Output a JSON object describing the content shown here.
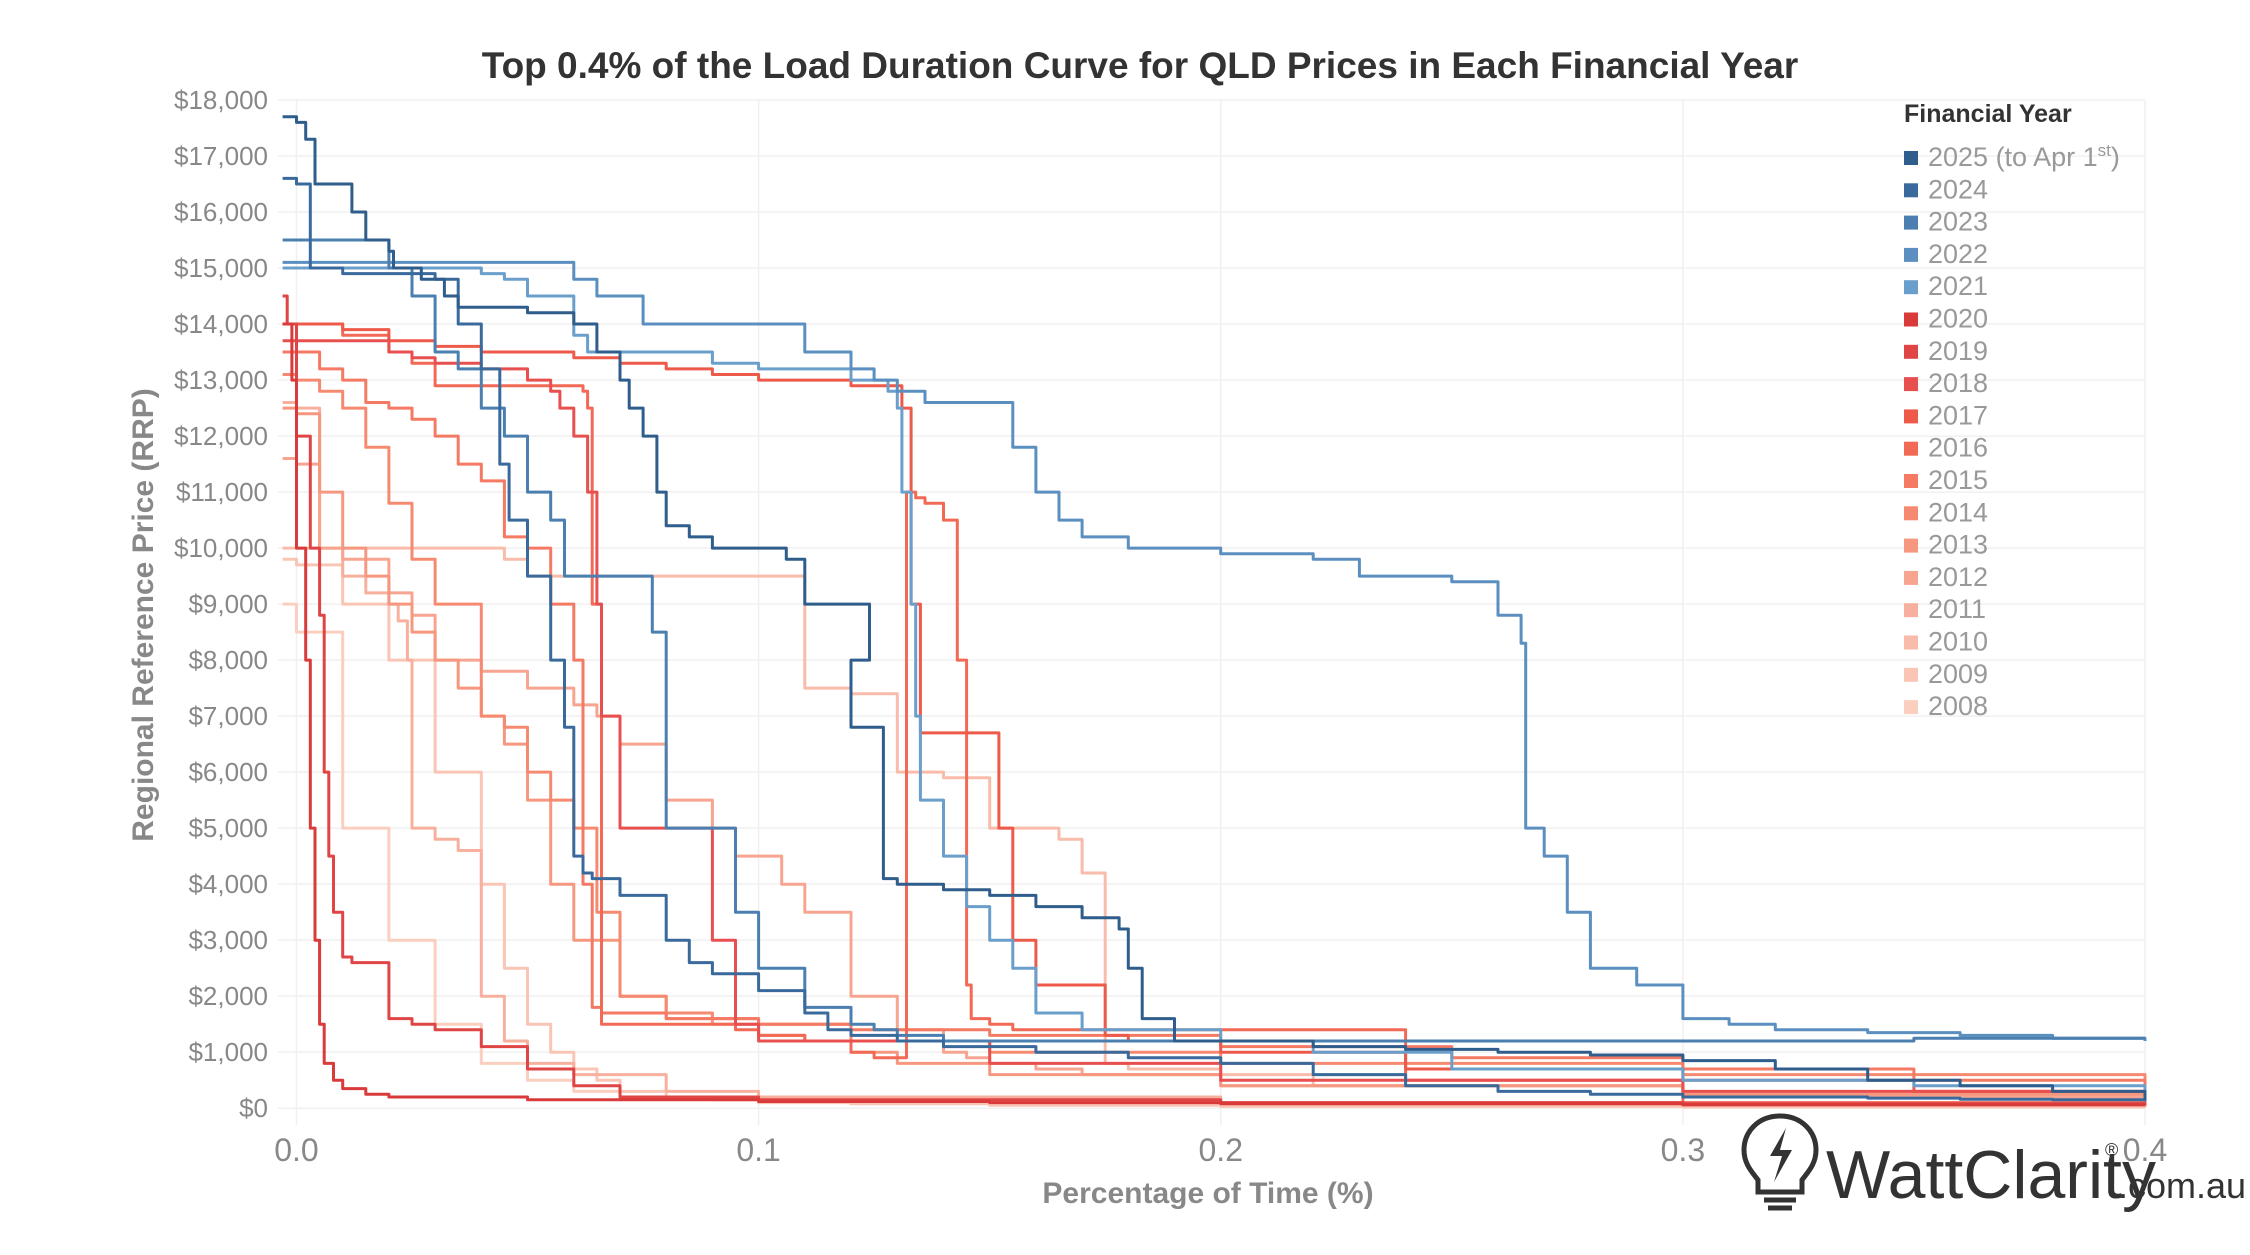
{
  "chart_data": {
    "type": "line",
    "title": "Top 0.4% of the Load Duration Curve for QLD Prices in Each Financial Year",
    "xlabel": "Percentage of Time (%)",
    "ylabel": "Regional Reference Price (RRP)",
    "xlim": [
      -0.004,
      0.4
    ],
    "ylim": [
      -300,
      18000
    ],
    "x_ticks": [
      0.0,
      0.1,
      0.2,
      0.3,
      0.4
    ],
    "x_tick_labels": [
      "0.0",
      "0.1",
      "0.2",
      "0.3",
      "0.4"
    ],
    "y_ticks": [
      0,
      1000,
      2000,
      3000,
      4000,
      5000,
      6000,
      7000,
      8000,
      9000,
      10000,
      11000,
      12000,
      13000,
      14000,
      15000,
      16000,
      17000,
      18000
    ],
    "y_tick_labels": [
      "$0",
      "$1,000",
      "$2,000",
      "$3,000",
      "$4,000",
      "$5,000",
      "$6,000",
      "$7,000",
      "$8,000",
      "$9,000",
      "$10,000",
      "$11,000",
      "$12,000",
      "$13,000",
      "$14,000",
      "$15,000",
      "$16,000",
      "$17,000",
      "$18,000"
    ],
    "grid": true,
    "legend": {
      "title": "Financial Year",
      "position": "top-right"
    },
    "series": [
      {
        "name": "2025 (to Apr 1",
        "superscript": "st",
        "suffix": ")",
        "color": "#2f5d8c",
        "x": [
          -0.003,
          0.0,
          0.002,
          0.004,
          0.009,
          0.012,
          0.015,
          0.02,
          0.021,
          0.027,
          0.032,
          0.035,
          0.04,
          0.045,
          0.05,
          0.06,
          0.065,
          0.07,
          0.072,
          0.075,
          0.078,
          0.08,
          0.085,
          0.09,
          0.1,
          0.106,
          0.11,
          0.12,
          0.124,
          0.12,
          0.127,
          0.13,
          0.133,
          0.14,
          0.15,
          0.16,
          0.17,
          0.178,
          0.18,
          0.183,
          0.19,
          0.2,
          0.22,
          0.24,
          0.26,
          0.28,
          0.3,
          0.32,
          0.34,
          0.36,
          0.38,
          0.4
        ],
        "y": [
          17700,
          17600,
          17300,
          16500,
          16500,
          16000,
          15500,
          15300,
          15000,
          14800,
          14500,
          14300,
          14300,
          14300,
          14200,
          14000,
          13500,
          13000,
          12500,
          12000,
          11000,
          10400,
          10200,
          10000,
          10000,
          9800,
          9000,
          9000,
          8000,
          6800,
          4100,
          4000,
          4000,
          3900,
          3800,
          3600,
          3400,
          3200,
          2500,
          1600,
          1200,
          1200,
          1100,
          1050,
          1000,
          950,
          850,
          700,
          500,
          400,
          300,
          150
        ]
      },
      {
        "name": "2024",
        "color": "#3a6a9c",
        "x": [
          -0.003,
          0.0,
          0.003,
          0.01,
          0.02,
          0.03,
          0.035,
          0.04,
          0.044,
          0.046,
          0.05,
          0.055,
          0.058,
          0.06,
          0.062,
          0.064,
          0.07,
          0.08,
          0.085,
          0.09,
          0.1,
          0.11,
          0.115,
          0.12,
          0.13,
          0.14,
          0.16,
          0.18,
          0.2,
          0.22,
          0.24,
          0.26,
          0.28,
          0.3,
          0.32,
          0.34,
          0.36,
          0.38,
          0.4
        ],
        "y": [
          16600,
          16500,
          15000,
          14900,
          14900,
          14800,
          14000,
          13200,
          11500,
          10500,
          9500,
          8000,
          6800,
          4500,
          4200,
          4100,
          3800,
          3000,
          2600,
          2400,
          2100,
          1700,
          1400,
          1300,
          1200,
          1100,
          1000,
          900,
          800,
          600,
          400,
          300,
          250,
          200,
          200,
          180,
          160,
          150,
          120
        ]
      },
      {
        "name": "2023",
        "color": "#4a7fb0",
        "x": [
          -0.003,
          0.0,
          0.015,
          0.02,
          0.025,
          0.03,
          0.035,
          0.04,
          0.045,
          0.05,
          0.055,
          0.058,
          0.06,
          0.062,
          0.065,
          0.07,
          0.076,
          0.077,
          0.08,
          0.09,
          0.095,
          0.1,
          0.11,
          0.12,
          0.125,
          0.13,
          0.14,
          0.15,
          0.17,
          0.2,
          0.24,
          0.3,
          0.35,
          0.4
        ],
        "y": [
          15500,
          15500,
          15500,
          15000,
          14500,
          13500,
          13200,
          12500,
          12000,
          11000,
          10500,
          9500,
          9500,
          9500,
          9500,
          9500,
          9500,
          8500,
          5000,
          5000,
          3500,
          2500,
          1800,
          1500,
          1400,
          1300,
          1200,
          1200,
          1200,
          1200,
          1200,
          1200,
          1250,
          1250
        ]
      },
      {
        "name": "2022",
        "color": "#5b8fc0",
        "x": [
          -0.003,
          0.0,
          0.02,
          0.05,
          0.06,
          0.065,
          0.075,
          0.1,
          0.11,
          0.12,
          0.125,
          0.13,
          0.136,
          0.14,
          0.15,
          0.155,
          0.16,
          0.165,
          0.17,
          0.18,
          0.2,
          0.22,
          0.23,
          0.24,
          0.25,
          0.26,
          0.265,
          0.266,
          0.267,
          0.27,
          0.275,
          0.28,
          0.29,
          0.3,
          0.31,
          0.32,
          0.34,
          0.36,
          0.38,
          0.4
        ],
        "y": [
          15100,
          15100,
          15100,
          15100,
          14800,
          14500,
          14000,
          14000,
          13500,
          13200,
          13000,
          12800,
          12600,
          12600,
          12600,
          11800,
          11000,
          10500,
          10200,
          10000,
          9900,
          9800,
          9500,
          9500,
          9400,
          8800,
          8300,
          5000,
          5000,
          4500,
          3500,
          2500,
          2200,
          1600,
          1500,
          1400,
          1350,
          1300,
          1250,
          1200
        ]
      },
      {
        "name": "2021",
        "color": "#6a9fcc",
        "x": [
          -0.003,
          0.0,
          0.02,
          0.04,
          0.045,
          0.05,
          0.06,
          0.063,
          0.07,
          0.09,
          0.1,
          0.12,
          0.128,
          0.13,
          0.131,
          0.133,
          0.134,
          0.135,
          0.14,
          0.145,
          0.15,
          0.155,
          0.16,
          0.17,
          0.2,
          0.22,
          0.25,
          0.3,
          0.35,
          0.4
        ],
        "y": [
          15000,
          15000,
          15000,
          14900,
          14800,
          14500,
          13800,
          13500,
          13500,
          13300,
          13200,
          13000,
          12800,
          12500,
          11000,
          9000,
          7000,
          5500,
          4500,
          3600,
          3000,
          2500,
          1700,
          1400,
          1200,
          1000,
          700,
          500,
          400,
          300
        ]
      },
      {
        "name": "2020",
        "color": "#d93a3a",
        "x": [
          -0.003,
          -0.001,
          0.0,
          0.002,
          0.003,
          0.004,
          0.005,
          0.006,
          0.008,
          0.01,
          0.015,
          0.02,
          0.05,
          0.1,
          0.15,
          0.2,
          0.3,
          0.4
        ],
        "y": [
          14000,
          13000,
          10000,
          8000,
          5000,
          3000,
          1500,
          800,
          500,
          350,
          250,
          200,
          150,
          120,
          100,
          80,
          60,
          50
        ]
      },
      {
        "name": "2019",
        "color": "#e04545",
        "x": [
          -0.003,
          -0.002,
          0.0,
          0.003,
          0.005,
          0.006,
          0.007,
          0.008,
          0.01,
          0.012,
          0.015,
          0.02,
          0.025,
          0.03,
          0.04,
          0.05,
          0.06,
          0.07,
          0.1,
          0.2,
          0.3,
          0.4
        ],
        "y": [
          14500,
          14000,
          12000,
          10000,
          8800,
          6000,
          4500,
          3500,
          2700,
          2600,
          2600,
          1600,
          1500,
          1400,
          1100,
          700,
          400,
          200,
          150,
          100,
          80,
          60
        ]
      },
      {
        "name": "2018",
        "color": "#e85050",
        "x": [
          -0.003,
          0.0,
          0.01,
          0.02,
          0.025,
          0.03,
          0.035,
          0.04,
          0.05,
          0.055,
          0.057,
          0.06,
          0.063,
          0.065,
          0.066,
          0.07,
          0.09,
          0.095,
          0.1,
          0.15,
          0.2,
          0.3,
          0.4
        ],
        "y": [
          13700,
          13700,
          13700,
          13500,
          13400,
          13300,
          13300,
          13200,
          13000,
          12800,
          12500,
          12000,
          11000,
          9000,
          7000,
          5000,
          3000,
          1500,
          1200,
          800,
          500,
          300,
          200
        ]
      },
      {
        "name": "2017",
        "color": "#ee5a4a",
        "x": [
          -0.003,
          0.0,
          0.01,
          0.02,
          0.03,
          0.04,
          0.05,
          0.06,
          0.07,
          0.08,
          0.09,
          0.1,
          0.11,
          0.12,
          0.128,
          0.13,
          0.131,
          0.133,
          0.135,
          0.15,
          0.152,
          0.155,
          0.16,
          0.17,
          0.175,
          0.18,
          0.2,
          0.24,
          0.3,
          0.35,
          0.4
        ],
        "y": [
          14000,
          14000,
          13900,
          13700,
          13600,
          13500,
          13500,
          13400,
          13300,
          13200,
          13100,
          13000,
          13000,
          12900,
          12900,
          12900,
          12500,
          9000,
          6700,
          6700,
          5000,
          3000,
          2200,
          2200,
          1300,
          1200,
          1000,
          700,
          500,
          300,
          200
        ]
      },
      {
        "name": "2016",
        "color": "#f26a55",
        "x": [
          -0.003,
          0.0,
          0.01,
          0.02,
          0.025,
          0.03,
          0.04,
          0.06,
          0.062,
          0.063,
          0.064,
          0.066,
          0.07,
          0.08,
          0.09,
          0.095,
          0.1,
          0.11,
          0.12,
          0.125,
          0.127,
          0.13,
          0.132,
          0.134,
          0.136,
          0.14,
          0.143,
          0.145,
          0.146,
          0.15,
          0.155,
          0.16,
          0.2,
          0.22,
          0.24,
          0.3,
          0.4
        ],
        "y": [
          14000,
          14000,
          13800,
          13500,
          13300,
          12900,
          12900,
          12900,
          12800,
          12500,
          9000,
          1500,
          1500,
          1500,
          1500,
          1400,
          1300,
          1200,
          1000,
          900,
          900,
          900,
          11000,
          10900,
          10800,
          10500,
          8000,
          2200,
          1600,
          1500,
          1400,
          1400,
          1400,
          1400,
          500,
          100,
          50
        ]
      },
      {
        "name": "2015",
        "color": "#f47a63",
        "x": [
          -0.003,
          0.0,
          0.005,
          0.01,
          0.015,
          0.02,
          0.025,
          0.03,
          0.035,
          0.04,
          0.045,
          0.05,
          0.055,
          0.06,
          0.062,
          0.064,
          0.066,
          0.07,
          0.08,
          0.1,
          0.12,
          0.15,
          0.2,
          0.25,
          0.3,
          0.35,
          0.4
        ],
        "y": [
          13500,
          13500,
          13200,
          13000,
          12600,
          12500,
          12300,
          12000,
          11500,
          11200,
          10200,
          10000,
          9000,
          8000,
          4000,
          1800,
          1700,
          1700,
          1600,
          1500,
          1400,
          1300,
          1100,
          900,
          700,
          500,
          400
        ]
      },
      {
        "name": "2014",
        "color": "#f58a70",
        "x": [
          -0.003,
          0.0,
          0.005,
          0.01,
          0.015,
          0.02,
          0.025,
          0.03,
          0.04,
          0.045,
          0.05,
          0.055,
          0.06,
          0.065,
          0.07,
          0.08,
          0.09,
          0.1,
          0.12,
          0.15,
          0.2,
          0.3,
          0.4
        ],
        "y": [
          13100,
          13000,
          12800,
          12500,
          11800,
          10800,
          9800,
          9000,
          7000,
          6800,
          6000,
          5500,
          5000,
          3500,
          2000,
          1700,
          1600,
          1500,
          1200,
          1000,
          800,
          600,
          500
        ]
      },
      {
        "name": "2013",
        "color": "#f69880",
        "x": [
          -0.003,
          0.0,
          0.005,
          0.01,
          0.015,
          0.02,
          0.025,
          0.03,
          0.035,
          0.04,
          0.045,
          0.05,
          0.055,
          0.06,
          0.07,
          0.08,
          0.09,
          0.1,
          0.11,
          0.12,
          0.13,
          0.15,
          0.2,
          0.3,
          0.4
        ],
        "y": [
          12500,
          12400,
          11000,
          10000,
          9500,
          9000,
          8500,
          8000,
          7500,
          7000,
          6500,
          5500,
          4000,
          3000,
          2000,
          1600,
          1500,
          1300,
          1200,
          1000,
          800,
          600,
          400,
          250,
          200
        ]
      },
      {
        "name": "2012",
        "color": "#f7a590",
        "x": [
          -0.003,
          0.0,
          0.005,
          0.01,
          0.02,
          0.025,
          0.03,
          0.04,
          0.05,
          0.06,
          0.065,
          0.07,
          0.08,
          0.09,
          0.095,
          0.1,
          0.105,
          0.11,
          0.12,
          0.13,
          0.14,
          0.145,
          0.15,
          0.16,
          0.17,
          0.2,
          0.3,
          0.4
        ],
        "y": [
          11600,
          11500,
          10000,
          9800,
          9200,
          8800,
          8000,
          7800,
          7500,
          7200,
          7000,
          6500,
          5500,
          5000,
          4500,
          4500,
          4000,
          3500,
          2000,
          1400,
          1000,
          900,
          800,
          700,
          600,
          400,
          200,
          100
        ]
      },
      {
        "name": "2011",
        "color": "#f8b09e",
        "x": [
          -0.003,
          0.0,
          0.005,
          0.01,
          0.015,
          0.02,
          0.022,
          0.024,
          0.025,
          0.03,
          0.035,
          0.04,
          0.045,
          0.05,
          0.06,
          0.08,
          0.1,
          0.2,
          0.3,
          0.4
        ],
        "y": [
          12600,
          12500,
          10000,
          9500,
          9200,
          9000,
          8700,
          8000,
          5000,
          4800,
          4600,
          2000,
          1200,
          800,
          600,
          300,
          200,
          100,
          50,
          20
        ]
      },
      {
        "name": "2010",
        "color": "#f9bbaa",
        "x": [
          -0.003,
          0.0,
          0.02,
          0.04,
          0.045,
          0.05,
          0.06,
          0.08,
          0.1,
          0.108,
          0.11,
          0.12,
          0.13,
          0.135,
          0.14,
          0.15,
          0.16,
          0.165,
          0.17,
          0.175,
          0.18,
          0.2,
          0.22,
          0.3,
          0.4
        ],
        "y": [
          10000,
          10000,
          10000,
          10000,
          9800,
          9500,
          9500,
          9500,
          9500,
          9500,
          7500,
          7400,
          6000,
          6000,
          5900,
          5000,
          5000,
          4800,
          4200,
          800,
          700,
          600,
          400,
          200,
          100
        ]
      },
      {
        "name": "2009",
        "color": "#fac5b5",
        "x": [
          -0.003,
          0.0,
          0.01,
          0.02,
          0.03,
          0.04,
          0.045,
          0.05,
          0.055,
          0.06,
          0.065,
          0.07,
          0.08,
          0.09,
          0.1,
          0.12,
          0.15,
          0.2,
          0.3,
          0.4
        ],
        "y": [
          9800,
          9700,
          9000,
          8000,
          6000,
          4000,
          2500,
          1500,
          1000,
          700,
          500,
          300,
          200,
          150,
          100,
          80,
          60,
          40,
          30,
          20
        ]
      },
      {
        "name": "2008",
        "color": "#fbcfbf",
        "x": [
          -0.003,
          0.0,
          0.01,
          0.02,
          0.03,
          0.04,
          0.05,
          0.06,
          0.07,
          0.1,
          0.15,
          0.2,
          0.3,
          0.4
        ],
        "y": [
          9000,
          8500,
          5000,
          3000,
          1500,
          800,
          500,
          300,
          200,
          100,
          50,
          30,
          20,
          10
        ]
      }
    ]
  },
  "branding": {
    "logo_text": "WattClarity",
    "logo_mark": "®",
    "logo_domain": ".com.au",
    "icon": "lightbulb-bolt-icon"
  }
}
